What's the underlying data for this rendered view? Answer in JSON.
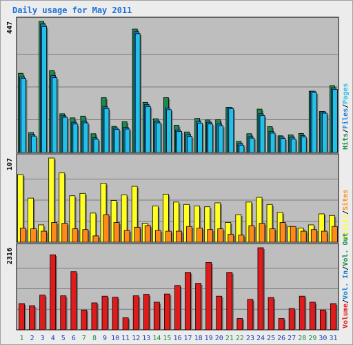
{
  "title": "Daily usage for May 2011",
  "colors": {
    "hits": "#1b8a4a",
    "files": "#1a7fd6",
    "pages": "#23c0e8",
    "visits": "#ffff22",
    "sites": "#ff8a1a",
    "kbytes": "#e01b1b",
    "panel_bg": "#bebebe",
    "grid": "#7a7a7a",
    "weekend_day": "#1b8a4a",
    "weekday_day": "#1a3fb8"
  },
  "chart_data": [
    {
      "type": "bar",
      "title": "Daily usage for May 2011",
      "panel": "hits-files-pages",
      "ymax_label": "447",
      "ylim": [
        0,
        447
      ],
      "legend_right": [
        {
          "label": "Hits",
          "color": "#1b8a4a"
        },
        {
          "label": "/",
          "color": "#000000"
        },
        {
          "label": "Files",
          "color": "#1a7fd6"
        },
        {
          "label": "/",
          "color": "#000000"
        },
        {
          "label": "Pages",
          "color": "#23c0e8"
        }
      ],
      "categories": [
        "1",
        "2",
        "3",
        "4",
        "5",
        "6",
        "7",
        "8",
        "9",
        "10",
        "11",
        "12",
        "13",
        "14",
        "15",
        "16",
        "17",
        "18",
        "19",
        "20",
        "21",
        "22",
        "23",
        "24",
        "25",
        "26",
        "27",
        "28",
        "29",
        "30",
        "31"
      ],
      "series": [
        {
          "name": "Hits",
          "values": [
            270,
            68,
            447,
            279,
            132,
            118,
            124,
            64,
            187,
            89,
            105,
            421,
            171,
            115,
            187,
            93,
            70,
            116,
            111,
            112,
            154,
            38,
            64,
            148,
            88,
            57,
            60,
            65,
            209,
            140,
            228
          ]
        },
        {
          "name": "Files",
          "values": [
            258,
            61,
            438,
            262,
            125,
            103,
            107,
            50,
            156,
            84,
            86,
            412,
            163,
            107,
            152,
            77,
            61,
            106,
            103,
            97,
            154,
            30,
            54,
            132,
            72,
            53,
            52,
            58,
            209,
            139,
            220
          ]
        },
        {
          "name": "Pages",
          "values": [
            253,
            56,
            430,
            255,
            120,
            97,
            101,
            45,
            150,
            79,
            80,
            405,
            157,
            101,
            146,
            72,
            55,
            100,
            97,
            91,
            150,
            25,
            49,
            126,
            66,
            48,
            46,
            53,
            205,
            134,
            215
          ]
        }
      ]
    },
    {
      "type": "bar",
      "panel": "visits-sites",
      "ymax_label": "107",
      "ylim": [
        0,
        107
      ],
      "legend_right": [
        {
          "label": "Visits",
          "color": "#ffff22"
        },
        {
          "label": "/",
          "color": "#000000"
        },
        {
          "label": "Sites",
          "color": "#ff8a1a"
        }
      ],
      "series": [
        {
          "name": "Visits",
          "values": [
            86,
            56,
            22,
            107,
            88,
            59,
            62,
            37,
            75,
            53,
            60,
            71,
            24,
            46,
            61,
            51,
            48,
            46,
            45,
            50,
            25,
            35,
            51,
            57,
            48,
            38,
            20,
            18,
            22,
            36,
            34
          ]
        },
        {
          "name": "Sites",
          "values": [
            18,
            17,
            14,
            25,
            24,
            17,
            16,
            8,
            35,
            25,
            15,
            19,
            21,
            15,
            14,
            14,
            20,
            18,
            16,
            17,
            10,
            9,
            21,
            24,
            17,
            25,
            20,
            14,
            16,
            14,
            20
          ]
        }
      ]
    },
    {
      "type": "bar",
      "panel": "kbytes",
      "ymax_label": "2316",
      "ylim": [
        0,
        2316
      ],
      "legend_right": [
        {
          "label": "Volume",
          "color": "#e01b1b"
        },
        {
          "label": "/",
          "color": "#000000"
        },
        {
          "label": "Vol. In",
          "color": "#1a7fd6"
        },
        {
          "label": "/",
          "color": "#000000"
        },
        {
          "label": "Vol. Out",
          "color": "#1b8a4a"
        }
      ],
      "series": [
        {
          "name": "Volume",
          "values": [
            740,
            680,
            980,
            2116,
            960,
            1640,
            560,
            760,
            950,
            920,
            340,
            960,
            1000,
            780,
            1010,
            1250,
            1620,
            1310,
            1900,
            950,
            1620,
            320,
            860,
            2316,
            910,
            320,
            600,
            950,
            780,
            560,
            740
          ]
        }
      ]
    }
  ],
  "x_labels": [
    {
      "text": "1",
      "weekend": true
    },
    {
      "text": "2",
      "weekend": false
    },
    {
      "text": "3",
      "weekend": false
    },
    {
      "text": "4",
      "weekend": false
    },
    {
      "text": "5",
      "weekend": false
    },
    {
      "text": "6",
      "weekend": false
    },
    {
      "text": "7",
      "weekend": true
    },
    {
      "text": "8",
      "weekend": true
    },
    {
      "text": "9",
      "weekend": false
    },
    {
      "text": "10",
      "weekend": false
    },
    {
      "text": "11",
      "weekend": false
    },
    {
      "text": "12",
      "weekend": false
    },
    {
      "text": "13",
      "weekend": false
    },
    {
      "text": "14",
      "weekend": true
    },
    {
      "text": "15",
      "weekend": true
    },
    {
      "text": "16",
      "weekend": false
    },
    {
      "text": "17",
      "weekend": false
    },
    {
      "text": "18",
      "weekend": false
    },
    {
      "text": "19",
      "weekend": false
    },
    {
      "text": "20",
      "weekend": false
    },
    {
      "text": "21",
      "weekend": true
    },
    {
      "text": "22",
      "weekend": true
    },
    {
      "text": "23",
      "weekend": false
    },
    {
      "text": "24",
      "weekend": false
    },
    {
      "text": "25",
      "weekend": false
    },
    {
      "text": "26",
      "weekend": false
    },
    {
      "text": "27",
      "weekend": false
    },
    {
      "text": "28",
      "weekend": true
    },
    {
      "text": "29",
      "weekend": true
    },
    {
      "text": "30",
      "weekend": false
    },
    {
      "text": "31",
      "weekend": false
    }
  ]
}
